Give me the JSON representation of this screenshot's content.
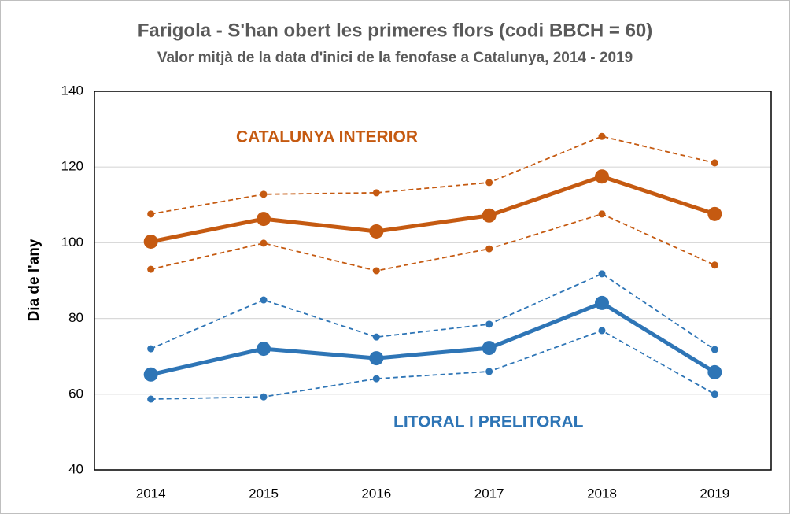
{
  "chart_data": {
    "type": "line",
    "title": "Farigola - S'han obert les primeres flors (codi BBCH = 60)",
    "subtitle": "Valor mitjà de la data d'inici de la fenofase a Catalunya, 2014 - 2019",
    "y_label": "Dia de l'any",
    "categories": [
      "2014",
      "2015",
      "2016",
      "2017",
      "2018",
      "2019"
    ],
    "ylim": [
      40,
      140
    ],
    "yticks": [
      40,
      60,
      80,
      100,
      120,
      140
    ],
    "grid": true,
    "series": [
      {
        "name": "CATALUNYA INTERIOR",
        "color": "#c55a11",
        "dashed": false,
        "values": [
          100.3,
          106.3,
          103,
          107.2,
          117.5,
          107.6
        ]
      },
      {
        "color": "#c55a11",
        "dashed": true,
        "values": [
          107.6,
          112.8,
          113.2,
          115.9,
          128.1,
          121.1
        ]
      },
      {
        "color": "#c55a11",
        "dashed": true,
        "values": [
          93,
          99.9,
          92.6,
          98.4,
          107.6,
          94.1
        ]
      },
      {
        "name": "LITORAL I PRELITORAL",
        "color": "#2e75b6",
        "dashed": false,
        "values": [
          65.2,
          72,
          69.5,
          72.2,
          84.1,
          65.8
        ]
      },
      {
        "color": "#2e75b6",
        "dashed": true,
        "values": [
          72,
          84.9,
          75.1,
          78.5,
          91.8,
          71.8
        ]
      },
      {
        "color": "#2e75b6",
        "dashed": true,
        "values": [
          58.7,
          59.3,
          64.1,
          66,
          76.8,
          60
        ]
      }
    ]
  }
}
